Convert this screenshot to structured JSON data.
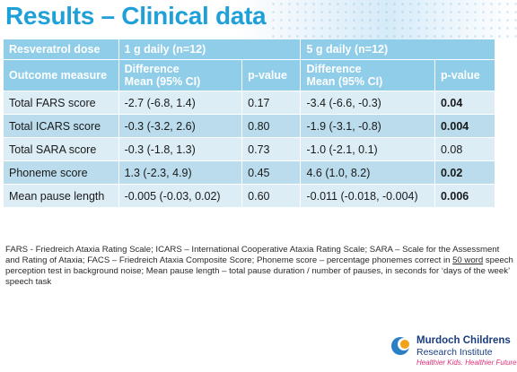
{
  "title": "Results – Clinical data",
  "table": {
    "header1": {
      "label": "Resveratrol dose",
      "group1": "1 g daily (n=12)",
      "group2": "5 g daily (n=12)"
    },
    "header2": {
      "label": "Outcome measure",
      "diff_line1": "Difference",
      "diff_line2": "Mean (95% CI)",
      "pvalue": "p-value"
    },
    "rows": [
      {
        "measure": "Total FARS score",
        "diff1": "-2.7 (-6.8, 1.4)",
        "p1": "0.17",
        "diff2": "-3.4 (-6.6, -0.3)",
        "p2": "0.04",
        "p2_bold": true
      },
      {
        "measure": "Total ICARS score",
        "diff1": "-0.3 (-3.2, 2.6)",
        "p1": "0.80",
        "diff2": "-1.9 (-3.1, -0.8)",
        "p2": "0.004",
        "p2_bold": true
      },
      {
        "measure": "Total SARA score",
        "diff1": "-0.3 (-1.8, 1.3)",
        "p1": "0.73",
        "diff2": "-1.0 (-2.1, 0.1)",
        "p2": "0.08",
        "p2_bold": false
      },
      {
        "measure": "Phoneme score",
        "diff1": "1.3 (-2.3, 4.9)",
        "p1": "0.45",
        "diff2": "4.6 (1.0, 8.2)",
        "p2": "0.02",
        "p2_bold": true
      },
      {
        "measure": "Mean pause length",
        "diff1": "-0.005 (-0.03, 0.02)",
        "p1": "0.60",
        "diff2": "-0.011 (-0.018, -0.004)",
        "p2": "0.006",
        "p2_bold": true
      }
    ]
  },
  "footnote": {
    "part1": "FARS  - Friedreich Ataxia Rating Scale; ICARS – International Cooperative Ataxia Rating Scale; SARA – Scale for the Assessment and Rating of Ataxia; FACS – Friedreich Ataxia Composite Score; Phoneme score – percentage phonemes correct in ",
    "underlined": "50 word",
    "part2": " speech perception test in background noise; Mean pause length – total pause duration / number of pauses, in seconds for ‘days of the week’ speech task"
  },
  "logo": {
    "name_line1": "Murdoch Childrens",
    "name_line2": "Research Institute",
    "tagline": "Healthier Kids. Healthier Future."
  },
  "colors": {
    "title": "#1fa0d8",
    "header_bg": "#8fcde9",
    "row_light": "#dcedf6",
    "row_dark": "#badcec",
    "logo_text": "#1a3d7c",
    "logo_tagline": "#e0307a"
  }
}
